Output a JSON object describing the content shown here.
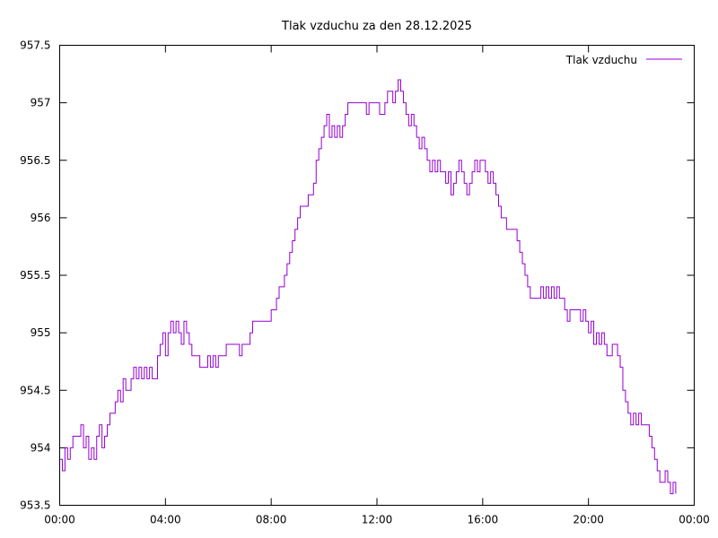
{
  "chart_data": {
    "type": "line",
    "title": "Tlak vzduchu za den 28.12.2025",
    "xlabel": "",
    "ylabel": "",
    "xlim": [
      0,
      24
    ],
    "ylim": [
      953.5,
      957.5
    ],
    "grid": false,
    "legend_position": "top-right",
    "x_ticks": [
      {
        "value": 0,
        "label": "00:00"
      },
      {
        "value": 4,
        "label": "04:00"
      },
      {
        "value": 8,
        "label": "08:00"
      },
      {
        "value": 12,
        "label": "12:00"
      },
      {
        "value": 16,
        "label": "16:00"
      },
      {
        "value": 20,
        "label": "20:00"
      },
      {
        "value": 24,
        "label": "00:00"
      }
    ],
    "y_ticks": [
      {
        "value": 953.5,
        "label": "953.5"
      },
      {
        "value": 954,
        "label": "954"
      },
      {
        "value": 954.5,
        "label": "954.5"
      },
      {
        "value": 955,
        "label": "955"
      },
      {
        "value": 955.5,
        "label": "955.5"
      },
      {
        "value": 956,
        "label": "956"
      },
      {
        "value": 956.5,
        "label": "956.5"
      },
      {
        "value": 957,
        "label": "957"
      },
      {
        "value": 957.5,
        "label": "957.5"
      }
    ],
    "series": [
      {
        "name": "Tlak vzduchu",
        "color": "#9400d3",
        "points": [
          [
            0.0,
            953.9
          ],
          [
            0.1,
            953.8
          ],
          [
            0.2,
            954.0
          ],
          [
            0.3,
            953.9
          ],
          [
            0.4,
            954.0
          ],
          [
            0.5,
            954.1
          ],
          [
            0.7,
            954.1
          ],
          [
            0.8,
            954.2
          ],
          [
            0.9,
            954.0
          ],
          [
            1.0,
            954.1
          ],
          [
            1.1,
            953.9
          ],
          [
            1.2,
            954.0
          ],
          [
            1.3,
            953.9
          ],
          [
            1.4,
            954.1
          ],
          [
            1.5,
            954.2
          ],
          [
            1.6,
            954.0
          ],
          [
            1.7,
            954.1
          ],
          [
            1.8,
            954.2
          ],
          [
            1.9,
            954.3
          ],
          [
            2.0,
            954.3
          ],
          [
            2.1,
            954.4
          ],
          [
            2.2,
            954.5
          ],
          [
            2.3,
            954.4
          ],
          [
            2.4,
            954.6
          ],
          [
            2.5,
            954.5
          ],
          [
            2.6,
            954.5
          ],
          [
            2.7,
            954.6
          ],
          [
            2.8,
            954.7
          ],
          [
            2.9,
            954.6
          ],
          [
            3.0,
            954.7
          ],
          [
            3.1,
            954.6
          ],
          [
            3.2,
            954.7
          ],
          [
            3.3,
            954.6
          ],
          [
            3.4,
            954.7
          ],
          [
            3.5,
            954.6
          ],
          [
            3.6,
            954.6
          ],
          [
            3.7,
            954.8
          ],
          [
            3.8,
            954.9
          ],
          [
            3.9,
            955.0
          ],
          [
            4.0,
            954.8
          ],
          [
            4.1,
            955.0
          ],
          [
            4.2,
            955.1
          ],
          [
            4.3,
            955.0
          ],
          [
            4.4,
            955.1
          ],
          [
            4.5,
            955.0
          ],
          [
            4.6,
            954.9
          ],
          [
            4.7,
            955.1
          ],
          [
            4.8,
            955.0
          ],
          [
            4.9,
            954.9
          ],
          [
            5.0,
            954.8
          ],
          [
            5.2,
            954.8
          ],
          [
            5.3,
            954.7
          ],
          [
            5.5,
            954.7
          ],
          [
            5.6,
            954.8
          ],
          [
            5.7,
            954.7
          ],
          [
            5.8,
            954.8
          ],
          [
            5.9,
            954.7
          ],
          [
            6.0,
            954.8
          ],
          [
            6.1,
            954.8
          ],
          [
            6.2,
            954.8
          ],
          [
            6.3,
            954.9
          ],
          [
            6.5,
            954.9
          ],
          [
            6.7,
            954.9
          ],
          [
            6.8,
            954.8
          ],
          [
            6.9,
            954.9
          ],
          [
            7.0,
            954.9
          ],
          [
            7.2,
            955.0
          ],
          [
            7.3,
            955.1
          ],
          [
            7.5,
            955.1
          ],
          [
            7.7,
            955.1
          ],
          [
            7.9,
            955.1
          ],
          [
            8.0,
            955.2
          ],
          [
            8.1,
            955.2
          ],
          [
            8.2,
            955.3
          ],
          [
            8.3,
            955.4
          ],
          [
            8.4,
            955.4
          ],
          [
            8.5,
            955.5
          ],
          [
            8.6,
            955.6
          ],
          [
            8.7,
            955.7
          ],
          [
            8.8,
            955.8
          ],
          [
            8.9,
            955.9
          ],
          [
            9.0,
            956.0
          ],
          [
            9.1,
            956.1
          ],
          [
            9.2,
            956.1
          ],
          [
            9.3,
            956.1
          ],
          [
            9.4,
            956.2
          ],
          [
            9.5,
            956.2
          ],
          [
            9.6,
            956.3
          ],
          [
            9.7,
            956.5
          ],
          [
            9.8,
            956.6
          ],
          [
            9.9,
            956.7
          ],
          [
            10.0,
            956.8
          ],
          [
            10.1,
            956.9
          ],
          [
            10.2,
            956.7
          ],
          [
            10.3,
            956.8
          ],
          [
            10.4,
            956.7
          ],
          [
            10.5,
            956.8
          ],
          [
            10.6,
            956.7
          ],
          [
            10.7,
            956.8
          ],
          [
            10.8,
            956.9
          ],
          [
            10.9,
            957.0
          ],
          [
            11.2,
            957.0
          ],
          [
            11.5,
            957.0
          ],
          [
            11.6,
            956.9
          ],
          [
            11.7,
            957.0
          ],
          [
            11.9,
            957.0
          ],
          [
            12.0,
            957.0
          ],
          [
            12.1,
            956.9
          ],
          [
            12.2,
            956.9
          ],
          [
            12.3,
            957.0
          ],
          [
            12.4,
            957.1
          ],
          [
            12.5,
            957.1
          ],
          [
            12.6,
            957.0
          ],
          [
            12.7,
            957.1
          ],
          [
            12.8,
            957.2
          ],
          [
            12.9,
            957.1
          ],
          [
            13.0,
            957.0
          ],
          [
            13.1,
            956.9
          ],
          [
            13.2,
            956.8
          ],
          [
            13.3,
            956.9
          ],
          [
            13.4,
            956.8
          ],
          [
            13.5,
            956.7
          ],
          [
            13.6,
            956.6
          ],
          [
            13.7,
            956.7
          ],
          [
            13.8,
            956.6
          ],
          [
            13.9,
            956.5
          ],
          [
            14.0,
            956.4
          ],
          [
            14.1,
            956.5
          ],
          [
            14.2,
            956.4
          ],
          [
            14.3,
            956.5
          ],
          [
            14.4,
            956.4
          ],
          [
            14.5,
            956.4
          ],
          [
            14.6,
            956.3
          ],
          [
            14.7,
            956.4
          ],
          [
            14.8,
            956.2
          ],
          [
            14.9,
            956.3
          ],
          [
            15.0,
            956.4
          ],
          [
            15.1,
            956.5
          ],
          [
            15.2,
            956.4
          ],
          [
            15.3,
            956.3
          ],
          [
            15.4,
            956.2
          ],
          [
            15.5,
            956.3
          ],
          [
            15.6,
            956.4
          ],
          [
            15.7,
            956.5
          ],
          [
            15.8,
            956.4
          ],
          [
            15.9,
            956.5
          ],
          [
            16.0,
            956.5
          ],
          [
            16.1,
            956.4
          ],
          [
            16.2,
            956.3
          ],
          [
            16.3,
            956.4
          ],
          [
            16.4,
            956.3
          ],
          [
            16.5,
            956.2
          ],
          [
            16.6,
            956.1
          ],
          [
            16.7,
            956.0
          ],
          [
            16.8,
            956.0
          ],
          [
            16.9,
            955.9
          ],
          [
            17.2,
            955.9
          ],
          [
            17.3,
            955.8
          ],
          [
            17.4,
            955.7
          ],
          [
            17.5,
            955.6
          ],
          [
            17.6,
            955.5
          ],
          [
            17.7,
            955.4
          ],
          [
            17.8,
            955.3
          ],
          [
            18.0,
            955.3
          ],
          [
            18.1,
            955.3
          ],
          [
            18.2,
            955.4
          ],
          [
            18.3,
            955.3
          ],
          [
            18.4,
            955.4
          ],
          [
            18.5,
            955.3
          ],
          [
            18.6,
            955.4
          ],
          [
            18.7,
            955.3
          ],
          [
            18.8,
            955.4
          ],
          [
            18.9,
            955.3
          ],
          [
            19.0,
            955.3
          ],
          [
            19.1,
            955.2
          ],
          [
            19.2,
            955.1
          ],
          [
            19.3,
            955.2
          ],
          [
            19.4,
            955.2
          ],
          [
            19.5,
            955.2
          ],
          [
            19.6,
            955.2
          ],
          [
            19.7,
            955.1
          ],
          [
            19.8,
            955.2
          ],
          [
            19.9,
            955.1
          ],
          [
            20.0,
            955.0
          ],
          [
            20.1,
            955.1
          ],
          [
            20.2,
            954.9
          ],
          [
            20.3,
            955.0
          ],
          [
            20.4,
            954.9
          ],
          [
            20.5,
            955.0
          ],
          [
            20.6,
            954.9
          ],
          [
            20.7,
            954.8
          ],
          [
            20.8,
            954.8
          ],
          [
            20.9,
            954.9
          ],
          [
            21.0,
            954.9
          ],
          [
            21.1,
            954.8
          ],
          [
            21.2,
            954.7
          ],
          [
            21.3,
            954.5
          ],
          [
            21.4,
            954.4
          ],
          [
            21.5,
            954.3
          ],
          [
            21.6,
            954.2
          ],
          [
            21.7,
            954.3
          ],
          [
            21.8,
            954.2
          ],
          [
            21.9,
            954.3
          ],
          [
            22.0,
            954.2
          ],
          [
            22.1,
            954.2
          ],
          [
            22.2,
            954.2
          ],
          [
            22.3,
            954.1
          ],
          [
            22.4,
            954.0
          ],
          [
            22.5,
            953.9
          ],
          [
            22.6,
            953.8
          ],
          [
            22.7,
            953.7
          ],
          [
            22.8,
            953.7
          ],
          [
            22.9,
            953.8
          ],
          [
            23.0,
            953.7
          ],
          [
            23.1,
            953.6
          ],
          [
            23.2,
            953.7
          ],
          [
            23.3,
            953.6
          ]
        ]
      }
    ]
  }
}
